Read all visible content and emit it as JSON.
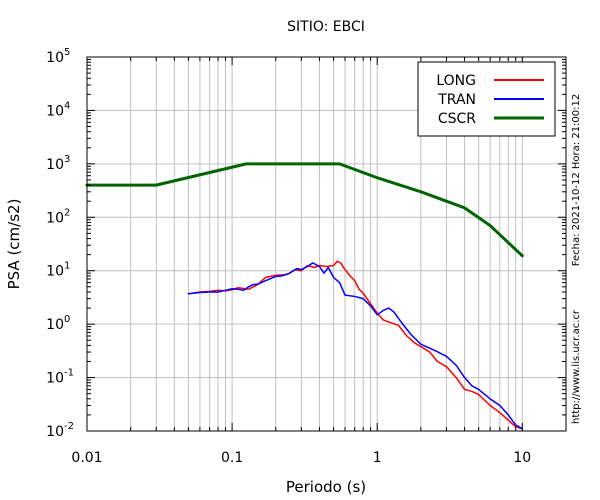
{
  "chart_data": {
    "type": "line",
    "title": "SITIO: EBCI",
    "xlabel": "Periodo (s)",
    "ylabel": "PSA (cm/s2)",
    "xscale": "log",
    "yscale": "log",
    "xlim": [
      0.01,
      20
    ],
    "ylim": [
      0.01,
      100000
    ],
    "x_ticks": [
      {
        "value": 0.01,
        "label": "0.01"
      },
      {
        "value": 0.1,
        "label": "0.1"
      },
      {
        "value": 1,
        "label": "1"
      },
      {
        "value": 10,
        "label": "10"
      }
    ],
    "y_ticks": [
      {
        "value": 0.01,
        "base": "10",
        "exp": "-2"
      },
      {
        "value": 0.1,
        "base": "10",
        "exp": "-1"
      },
      {
        "value": 1,
        "base": "10",
        "exp": "0"
      },
      {
        "value": 10,
        "base": "10",
        "exp": "1"
      },
      {
        "value": 100,
        "base": "10",
        "exp": "2"
      },
      {
        "value": 1000,
        "base": "10",
        "exp": "3"
      },
      {
        "value": 10000,
        "base": "10",
        "exp": "4"
      },
      {
        "value": 100000,
        "base": "10",
        "exp": "5"
      }
    ],
    "grid": true,
    "legend_position": "top-right",
    "series": [
      {
        "name": "LONG",
        "color": "#ff0000",
        "points": [
          [
            0.05,
            3.7
          ],
          [
            0.06,
            4.0
          ],
          [
            0.07,
            4.1
          ],
          [
            0.08,
            4.3
          ],
          [
            0.09,
            4.2
          ],
          [
            0.1,
            4.4
          ],
          [
            0.11,
            4.8
          ],
          [
            0.13,
            4.5
          ],
          [
            0.15,
            5.5
          ],
          [
            0.17,
            7.5
          ],
          [
            0.2,
            8.2
          ],
          [
            0.24,
            8.5
          ],
          [
            0.27,
            10.5
          ],
          [
            0.3,
            10.0
          ],
          [
            0.33,
            12.5
          ],
          [
            0.37,
            11.5
          ],
          [
            0.4,
            12.5
          ],
          [
            0.45,
            12.0
          ],
          [
            0.5,
            12.5
          ],
          [
            0.53,
            15.0
          ],
          [
            0.56,
            14.0
          ],
          [
            0.6,
            10.5
          ],
          [
            0.65,
            8.0
          ],
          [
            0.7,
            6.5
          ],
          [
            0.75,
            4.5
          ],
          [
            0.8,
            3.8
          ],
          [
            0.9,
            2.4
          ],
          [
            1.0,
            1.6
          ],
          [
            1.1,
            1.2
          ],
          [
            1.2,
            1.1
          ],
          [
            1.4,
            0.95
          ],
          [
            1.6,
            0.6
          ],
          [
            1.8,
            0.45
          ],
          [
            2.0,
            0.38
          ],
          [
            2.3,
            0.3
          ],
          [
            2.6,
            0.2
          ],
          [
            3.0,
            0.16
          ],
          [
            3.5,
            0.1
          ],
          [
            4.0,
            0.06
          ],
          [
            4.5,
            0.055
          ],
          [
            5.0,
            0.048
          ],
          [
            6.0,
            0.03
          ],
          [
            7.0,
            0.022
          ],
          [
            8.0,
            0.016
          ],
          [
            9.0,
            0.012
          ],
          [
            10.0,
            0.011
          ]
        ]
      },
      {
        "name": "TRAN",
        "color": "#0000ff",
        "points": [
          [
            0.05,
            3.7
          ],
          [
            0.06,
            3.9
          ],
          [
            0.07,
            4.0
          ],
          [
            0.08,
            4.0
          ],
          [
            0.09,
            4.3
          ],
          [
            0.1,
            4.6
          ],
          [
            0.11,
            4.5
          ],
          [
            0.12,
            4.3
          ],
          [
            0.13,
            5.0
          ],
          [
            0.14,
            5.5
          ],
          [
            0.15,
            5.6
          ],
          [
            0.17,
            6.5
          ],
          [
            0.2,
            7.8
          ],
          [
            0.22,
            8.0
          ],
          [
            0.25,
            9.0
          ],
          [
            0.28,
            11.0
          ],
          [
            0.3,
            10.5
          ],
          [
            0.33,
            12.0
          ],
          [
            0.36,
            14.0
          ],
          [
            0.4,
            12.0
          ],
          [
            0.43,
            9.0
          ],
          [
            0.46,
            11.5
          ],
          [
            0.5,
            7.5
          ],
          [
            0.55,
            6.0
          ],
          [
            0.6,
            3.5
          ],
          [
            0.7,
            3.3
          ],
          [
            0.8,
            3.0
          ],
          [
            0.9,
            2.2
          ],
          [
            1.0,
            1.5
          ],
          [
            1.1,
            1.8
          ],
          [
            1.2,
            2.0
          ],
          [
            1.3,
            1.7
          ],
          [
            1.5,
            1.0
          ],
          [
            1.7,
            0.65
          ],
          [
            2.0,
            0.42
          ],
          [
            2.5,
            0.32
          ],
          [
            3.0,
            0.25
          ],
          [
            3.5,
            0.17
          ],
          [
            4.0,
            0.1
          ],
          [
            4.5,
            0.07
          ],
          [
            5.0,
            0.06
          ],
          [
            6.0,
            0.04
          ],
          [
            7.0,
            0.03
          ],
          [
            8.0,
            0.02
          ],
          [
            9.0,
            0.013
          ],
          [
            10.0,
            0.011
          ]
        ]
      },
      {
        "name": "CSCR",
        "color": "#006400",
        "points": [
          [
            0.01,
            400
          ],
          [
            0.03,
            400
          ],
          [
            0.125,
            1000
          ],
          [
            0.55,
            1000
          ],
          [
            1.0,
            550
          ],
          [
            2.0,
            300
          ],
          [
            3.0,
            200
          ],
          [
            4.0,
            150
          ],
          [
            6.0,
            70
          ],
          [
            10.0,
            19
          ]
        ]
      }
    ]
  },
  "side_text": {
    "date_label": "Fecha: 2021-10-12 Hora: 21:00:12",
    "url_label": "http://www.lis.ucr.ac.cr"
  }
}
